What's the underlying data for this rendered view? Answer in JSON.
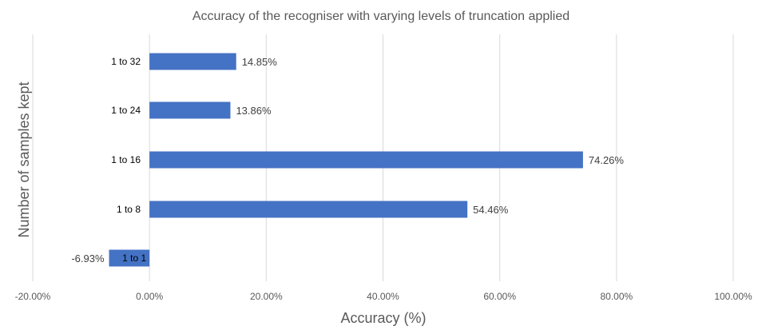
{
  "chart_data": {
    "type": "bar",
    "orientation": "horizontal",
    "title": "Accuracy of the recogniser with varying levels of truncation applied",
    "xlabel": "Accuracy (%)",
    "ylabel": "Number of samples kept",
    "categories": [
      "1 to 32",
      "1 to 24",
      "1 to 16",
      "1 to 8",
      "1 to 1"
    ],
    "values": [
      14.85,
      13.86,
      74.26,
      54.46,
      -6.93
    ],
    "data_labels": [
      "14.85%",
      "13.86%",
      "74.26%",
      "54.46%",
      "-6.93%"
    ],
    "xlim": [
      -20,
      100
    ],
    "xticks": [
      -20,
      0,
      20,
      40,
      60,
      80,
      100
    ],
    "xtick_labels": [
      "-20.00%",
      "0.00%",
      "20.00%",
      "40.00%",
      "60.00%",
      "80.00%",
      "100.00%"
    ],
    "grid": true,
    "legend": "none",
    "bar_color": "#4472c4"
  }
}
